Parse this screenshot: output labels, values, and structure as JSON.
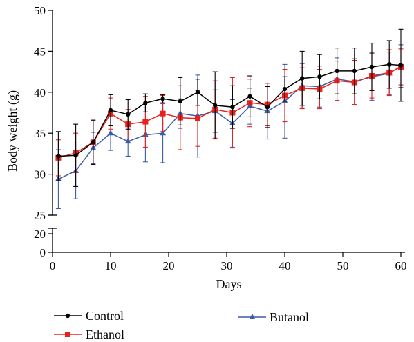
{
  "chart_data": {
    "type": "line",
    "title": "",
    "xlabel": "Days",
    "ylabel": "Body weight (g)",
    "xlim": [
      0,
      61
    ],
    "xticks": [
      0,
      10,
      20,
      30,
      40,
      50,
      60
    ],
    "ylim_lower_segment": [
      0,
      20
    ],
    "yticks_lower_segment": [
      0,
      20
    ],
    "ylim_upper_segment": [
      25,
      50
    ],
    "yticks_upper_segment": [
      25,
      30,
      35,
      40,
      45,
      50
    ],
    "broken_y_axis": true,
    "grid": false,
    "legend_position": "bottom",
    "x": [
      1,
      4,
      7,
      10,
      13,
      16,
      19,
      22,
      25,
      28,
      31,
      34,
      37,
      40,
      43,
      46,
      49,
      52,
      55,
      58,
      60
    ],
    "series": [
      {
        "name": "Control",
        "color": "#000000",
        "marker": "circle",
        "values": [
          32.2,
          32.3,
          33.9,
          37.8,
          37.3,
          38.7,
          39.2,
          38.9,
          40.0,
          38.4,
          38.2,
          39.5,
          38.2,
          40.4,
          41.7,
          41.9,
          42.6,
          42.6,
          43.1,
          43.4,
          43.3
        ],
        "errors": [
          3.0,
          3.8,
          2.7,
          1.9,
          1.8,
          1.1,
          0.5,
          2.9,
          1.6,
          4.1,
          2.6,
          2.5,
          2.5,
          1.5,
          3.3,
          2.7,
          2.8,
          2.8,
          2.9,
          2.9,
          4.4
        ]
      },
      {
        "name": "Ethanol",
        "color": "#e8211d",
        "marker": "square",
        "values": [
          32.0,
          32.6,
          33.9,
          37.4,
          36.1,
          36.4,
          37.4,
          36.9,
          36.8,
          37.9,
          37.5,
          38.7,
          38.5,
          39.6,
          40.5,
          40.4,
          41.4,
          41.2,
          42.0,
          42.4,
          43.1
        ],
        "errors": [
          2.2,
          2.4,
          2.7,
          1.9,
          1.8,
          3.1,
          2.2,
          3.9,
          3.4,
          3.5,
          4.3,
          2.9,
          2.6,
          3.2,
          2.5,
          2.4,
          2.4,
          2.7,
          2.7,
          2.8,
          2.2
        ]
      },
      {
        "name": "Butanol",
        "color": "#3d5ca8",
        "marker": "triangle",
        "values": [
          29.4,
          30.4,
          33.2,
          35.0,
          34.0,
          34.8,
          35.0,
          37.4,
          37.1,
          37.7,
          36.2,
          38.3,
          37.7,
          38.9,
          40.8,
          40.7,
          41.6,
          41.3,
          41.9,
          42.3,
          43.2
        ],
        "errors": [
          3.6,
          3.4,
          1.9,
          2.1,
          1.8,
          3.3,
          3.6,
          1.8,
          5.0,
          2.6,
          2.9,
          2.2,
          3.4,
          4.5,
          2.7,
          2.5,
          2.6,
          2.8,
          2.9,
          2.6,
          2.6
        ]
      }
    ]
  }
}
